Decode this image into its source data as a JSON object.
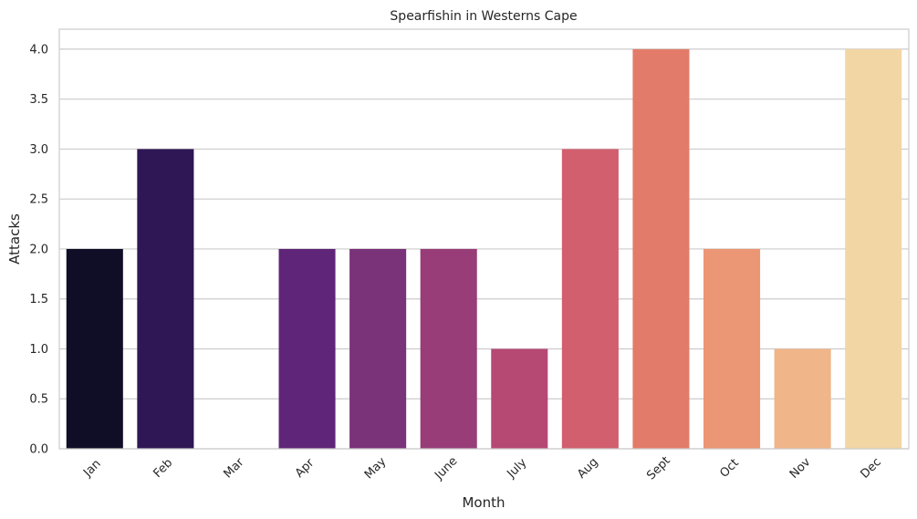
{
  "chart_data": {
    "type": "bar",
    "title": "Spearfishin in Westerns Cape",
    "xlabel": "Month",
    "ylabel": "Attacks",
    "categories": [
      "Jan",
      "Feb",
      "Mar",
      "Apr",
      "May",
      "June",
      "July",
      "Aug",
      "Sept",
      "Oct",
      "Nov",
      "Dec"
    ],
    "values": [
      2,
      3,
      0,
      2,
      2,
      2,
      1,
      3,
      4,
      2,
      1,
      4
    ],
    "colors": [
      "#100e26",
      "#2e1754",
      "#4a1a70",
      "#5f2578",
      "#7a3279",
      "#983d78",
      "#b64874",
      "#d15f6e",
      "#e37b6a",
      "#eb9674",
      "#f0b588",
      "#f2d6a4"
    ],
    "ylim": [
      0,
      4.2
    ],
    "yticks": [
      "0.0",
      "0.5",
      "1.0",
      "1.5",
      "2.0",
      "2.5",
      "3.0",
      "3.5",
      "4.0"
    ],
    "grid": true,
    "legend": "none"
  }
}
